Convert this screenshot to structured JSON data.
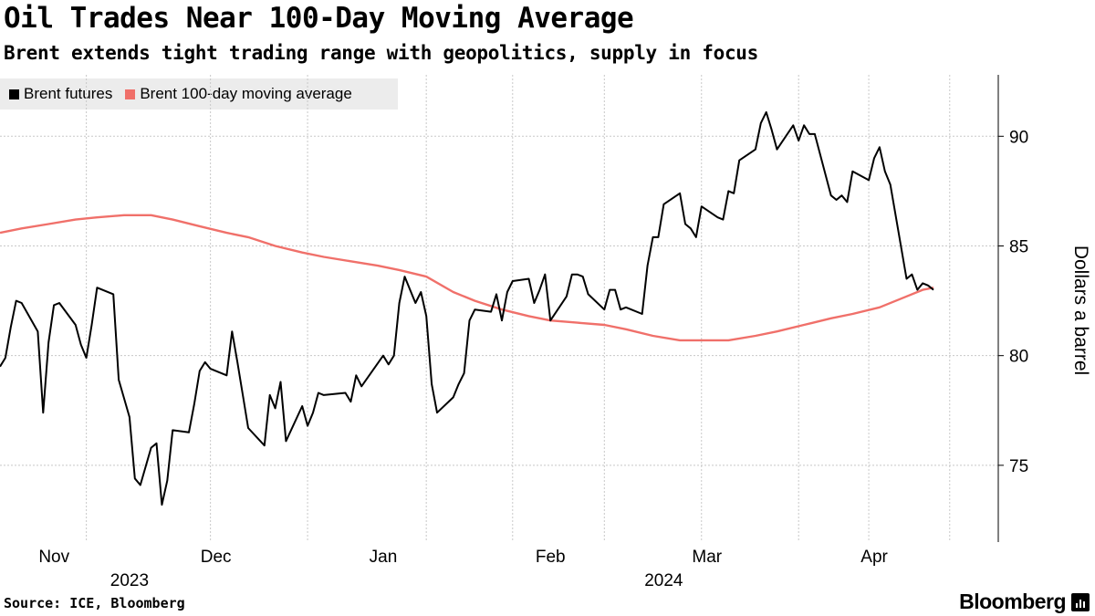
{
  "header": {
    "title": "Oil Trades Near 100-Day Moving Average",
    "subtitle": "Brent extends tight trading range with geopolitics, supply in focus"
  },
  "legend": {
    "items": [
      {
        "label": "Brent futures",
        "color": "#000000"
      },
      {
        "label": "Brent 100-day moving average",
        "color": "#f0706a"
      }
    ]
  },
  "footer": {
    "source": "Source: ICE, Bloomberg",
    "brand": "Bloomberg"
  },
  "chart_data": {
    "type": "line",
    "ylabel": "Dollars a barrel",
    "ylim": [
      71.5,
      92.8
    ],
    "yticks": [
      75,
      80,
      85,
      90
    ],
    "ytick_labels": [
      "75",
      "80",
      "85",
      "90"
    ],
    "xlim": [
      "2023-10-23",
      "2024-04-25"
    ],
    "x_month_labels": [
      {
        "date": "2023-11-01",
        "label": "Nov"
      },
      {
        "date": "2023-12-01",
        "label": "Dec"
      },
      {
        "date": "2024-01-01",
        "label": "Jan"
      },
      {
        "date": "2024-02-01",
        "label": "Feb"
      },
      {
        "date": "2024-03-01",
        "label": "Mar"
      },
      {
        "date": "2024-04-01",
        "label": "Apr"
      }
    ],
    "x_year_labels": [
      {
        "date": "2023-11-16",
        "label": "2023"
      },
      {
        "date": "2024-02-23",
        "label": "2024"
      }
    ],
    "x_gridlines": [
      "2023-11-08",
      "2023-12-01",
      "2023-12-19",
      "2024-01-10",
      "2024-01-26",
      "2024-02-12",
      "2024-03-01",
      "2024-03-19",
      "2024-04-01",
      "2024-04-16"
    ],
    "grid": true,
    "legend_position": "top-left",
    "series": [
      {
        "name": "Brent futures",
        "color": "#000000",
        "points": [
          [
            "2023-10-23",
            79.5
          ],
          [
            "2023-10-24",
            79.9
          ],
          [
            "2023-10-25",
            81.3
          ],
          [
            "2023-10-26",
            82.5
          ],
          [
            "2023-10-27",
            82.4
          ],
          [
            "2023-10-30",
            81.1
          ],
          [
            "2023-10-31",
            77.4
          ],
          [
            "2023-11-01",
            80.6
          ],
          [
            "2023-11-02",
            82.3
          ],
          [
            "2023-11-03",
            82.4
          ],
          [
            "2023-11-06",
            81.4
          ],
          [
            "2023-11-07",
            80.5
          ],
          [
            "2023-11-08",
            79.9
          ],
          [
            "2023-11-09",
            81.4
          ],
          [
            "2023-11-10",
            83.1
          ],
          [
            "2023-11-13",
            82.8
          ],
          [
            "2023-11-14",
            78.9
          ],
          [
            "2023-11-16",
            77.2
          ],
          [
            "2023-11-17",
            74.4
          ],
          [
            "2023-11-18",
            74.1
          ],
          [
            "2023-11-20",
            75.8
          ],
          [
            "2023-11-21",
            76.0
          ],
          [
            "2023-11-22",
            73.2
          ],
          [
            "2023-11-23",
            74.3
          ],
          [
            "2023-11-24",
            76.6
          ],
          [
            "2023-11-27",
            76.5
          ],
          [
            "2023-11-28",
            77.8
          ],
          [
            "2023-11-29",
            79.3
          ],
          [
            "2023-11-30",
            79.7
          ],
          [
            "2023-12-01",
            79.4
          ],
          [
            "2023-12-04",
            79.1
          ],
          [
            "2023-12-05",
            81.1
          ],
          [
            "2023-12-06",
            79.7
          ],
          [
            "2023-12-07",
            78.2
          ],
          [
            "2023-12-08",
            76.7
          ],
          [
            "2023-12-11",
            75.9
          ],
          [
            "2023-12-12",
            78.2
          ],
          [
            "2023-12-13",
            77.6
          ],
          [
            "2023-12-14",
            78.8
          ],
          [
            "2023-12-15",
            76.1
          ],
          [
            "2023-12-18",
            77.7
          ],
          [
            "2023-12-19",
            76.8
          ],
          [
            "2023-12-20",
            77.4
          ],
          [
            "2023-12-21",
            78.3
          ],
          [
            "2023-12-22",
            78.2
          ],
          [
            "2023-12-26",
            78.3
          ],
          [
            "2023-12-27",
            77.9
          ],
          [
            "2023-12-28",
            79.1
          ],
          [
            "2023-12-29",
            78.6
          ],
          [
            "2024-01-02",
            80.0
          ],
          [
            "2024-01-03",
            79.6
          ],
          [
            "2024-01-04",
            80.0
          ],
          [
            "2024-01-05",
            82.4
          ],
          [
            "2024-01-06",
            83.6
          ],
          [
            "2024-01-08",
            82.4
          ],
          [
            "2024-01-09",
            82.9
          ],
          [
            "2024-01-10",
            81.8
          ],
          [
            "2024-01-11",
            78.7
          ],
          [
            "2024-01-12",
            77.4
          ],
          [
            "2024-01-15",
            78.1
          ],
          [
            "2024-01-16",
            78.7
          ],
          [
            "2024-01-17",
            79.2
          ],
          [
            "2024-01-18",
            81.6
          ],
          [
            "2024-01-19",
            82.1
          ],
          [
            "2024-01-22",
            82.0
          ],
          [
            "2024-01-23",
            82.8
          ],
          [
            "2024-01-24",
            81.6
          ],
          [
            "2024-01-25",
            82.9
          ],
          [
            "2024-01-26",
            83.4
          ],
          [
            "2024-01-29",
            83.5
          ],
          [
            "2024-01-30",
            82.4
          ],
          [
            "2024-01-31",
            83.0
          ],
          [
            "2024-02-01",
            83.7
          ],
          [
            "2024-02-02",
            81.6
          ],
          [
            "2024-02-05",
            82.7
          ],
          [
            "2024-02-06",
            83.7
          ],
          [
            "2024-02-07",
            83.7
          ],
          [
            "2024-02-08",
            83.6
          ],
          [
            "2024-02-09",
            82.8
          ],
          [
            "2024-02-12",
            82.1
          ],
          [
            "2024-02-13",
            83.0
          ],
          [
            "2024-02-14",
            83.0
          ],
          [
            "2024-02-15",
            82.1
          ],
          [
            "2024-02-16",
            82.2
          ],
          [
            "2024-02-19",
            81.9
          ],
          [
            "2024-02-20",
            84.1
          ],
          [
            "2024-02-21",
            85.4
          ],
          [
            "2024-02-22",
            85.4
          ],
          [
            "2024-02-23",
            86.9
          ],
          [
            "2024-02-26",
            87.4
          ],
          [
            "2024-02-27",
            86.0
          ],
          [
            "2024-02-28",
            85.8
          ],
          [
            "2024-02-29",
            85.4
          ],
          [
            "2024-03-01",
            86.8
          ],
          [
            "2024-03-04",
            86.3
          ],
          [
            "2024-03-05",
            86.2
          ],
          [
            "2024-03-06",
            87.5
          ],
          [
            "2024-03-07",
            87.4
          ],
          [
            "2024-03-08",
            88.9
          ],
          [
            "2024-03-11",
            89.4
          ],
          [
            "2024-03-12",
            90.6
          ],
          [
            "2024-03-13",
            91.1
          ],
          [
            "2024-03-14",
            90.3
          ],
          [
            "2024-03-15",
            89.4
          ],
          [
            "2024-03-18",
            90.5
          ],
          [
            "2024-03-19",
            89.8
          ],
          [
            "2024-03-20",
            90.5
          ],
          [
            "2024-03-21",
            90.1
          ],
          [
            "2024-03-22",
            90.1
          ],
          [
            "2024-03-25",
            87.3
          ],
          [
            "2024-03-26",
            87.1
          ],
          [
            "2024-03-27",
            87.3
          ],
          [
            "2024-03-28",
            87.0
          ],
          [
            "2024-03-29",
            88.4
          ],
          [
            "2024-04-01",
            88.0
          ],
          [
            "2024-04-02",
            89.0
          ],
          [
            "2024-04-03",
            89.5
          ],
          [
            "2024-04-04",
            88.4
          ],
          [
            "2024-04-05",
            87.8
          ],
          [
            "2024-04-08",
            83.5
          ],
          [
            "2024-04-09",
            83.7
          ],
          [
            "2024-04-10",
            83.0
          ],
          [
            "2024-04-11",
            83.3
          ],
          [
            "2024-04-12",
            83.2
          ],
          [
            "2024-04-13",
            83.0
          ]
        ]
      },
      {
        "name": "Brent 100-day moving average",
        "color": "#f0706a",
        "points": [
          [
            "2023-10-23",
            85.6
          ],
          [
            "2023-10-27",
            85.8
          ],
          [
            "2023-11-01",
            86.0
          ],
          [
            "2023-11-06",
            86.2
          ],
          [
            "2023-11-10",
            86.3
          ],
          [
            "2023-11-15",
            86.4
          ],
          [
            "2023-11-20",
            86.4
          ],
          [
            "2023-11-24",
            86.2
          ],
          [
            "2023-11-29",
            85.9
          ],
          [
            "2023-12-04",
            85.6
          ],
          [
            "2023-12-08",
            85.4
          ],
          [
            "2023-12-13",
            85.0
          ],
          [
            "2023-12-18",
            84.7
          ],
          [
            "2023-12-22",
            84.5
          ],
          [
            "2023-12-27",
            84.3
          ],
          [
            "2024-01-01",
            84.1
          ],
          [
            "2024-01-05",
            83.9
          ],
          [
            "2024-01-10",
            83.6
          ],
          [
            "2024-01-15",
            82.9
          ],
          [
            "2024-01-19",
            82.5
          ],
          [
            "2024-01-24",
            82.1
          ],
          [
            "2024-01-29",
            81.8
          ],
          [
            "2024-02-02",
            81.6
          ],
          [
            "2024-02-07",
            81.5
          ],
          [
            "2024-02-12",
            81.4
          ],
          [
            "2024-02-16",
            81.2
          ],
          [
            "2024-02-21",
            80.9
          ],
          [
            "2024-02-26",
            80.7
          ],
          [
            "2024-03-01",
            80.7
          ],
          [
            "2024-03-06",
            80.7
          ],
          [
            "2024-03-11",
            80.9
          ],
          [
            "2024-03-15",
            81.1
          ],
          [
            "2024-03-20",
            81.4
          ],
          [
            "2024-03-25",
            81.7
          ],
          [
            "2024-03-29",
            81.9
          ],
          [
            "2024-04-03",
            82.2
          ],
          [
            "2024-04-08",
            82.7
          ],
          [
            "2024-04-11",
            83.0
          ],
          [
            "2024-04-13",
            83.1
          ]
        ]
      }
    ]
  }
}
